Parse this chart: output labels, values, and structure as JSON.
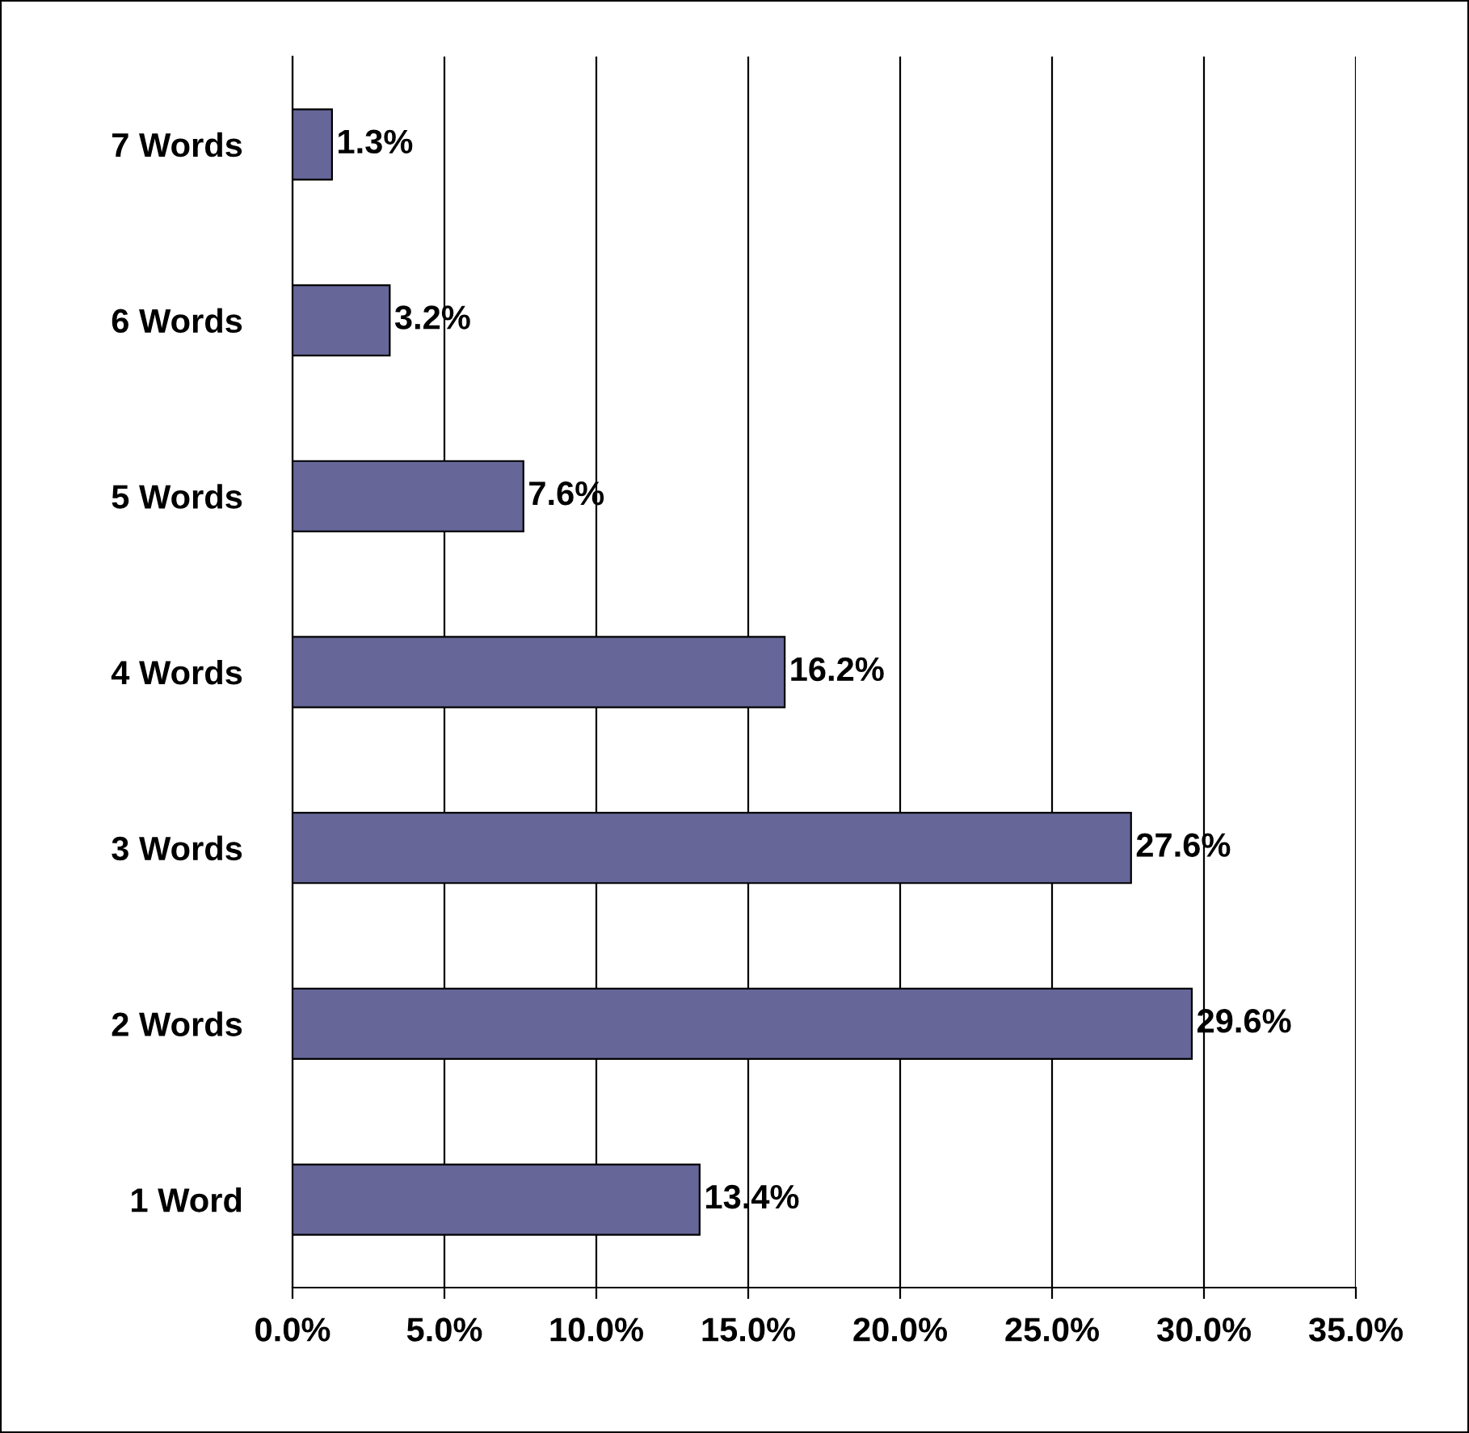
{
  "chart_data": {
    "type": "bar",
    "orientation": "horizontal",
    "categories": [
      "7 Words",
      "6 Words",
      "5 Words",
      "4 Words",
      "3 Words",
      "2 Words",
      "1 Word"
    ],
    "values": [
      1.3,
      3.2,
      7.6,
      16.2,
      27.6,
      29.6,
      13.4
    ],
    "value_labels": [
      "1.3%",
      "3.2%",
      "7.6%",
      "16.2%",
      "27.6%",
      "29.6%",
      "13.4%"
    ],
    "color": "#666699",
    "xlim": [
      0,
      35
    ],
    "xticks": [
      {
        "value": 0,
        "label": "0.0%"
      },
      {
        "value": 5,
        "label": "5.0%"
      },
      {
        "value": 10,
        "label": "10.0%"
      },
      {
        "value": 15,
        "label": "15.0%"
      },
      {
        "value": 20,
        "label": "20.0%"
      },
      {
        "value": 25,
        "label": "25.0%"
      },
      {
        "value": 30,
        "label": "30.0%"
      },
      {
        "value": 35,
        "label": "35.0%"
      }
    ],
    "grid": "x"
  }
}
